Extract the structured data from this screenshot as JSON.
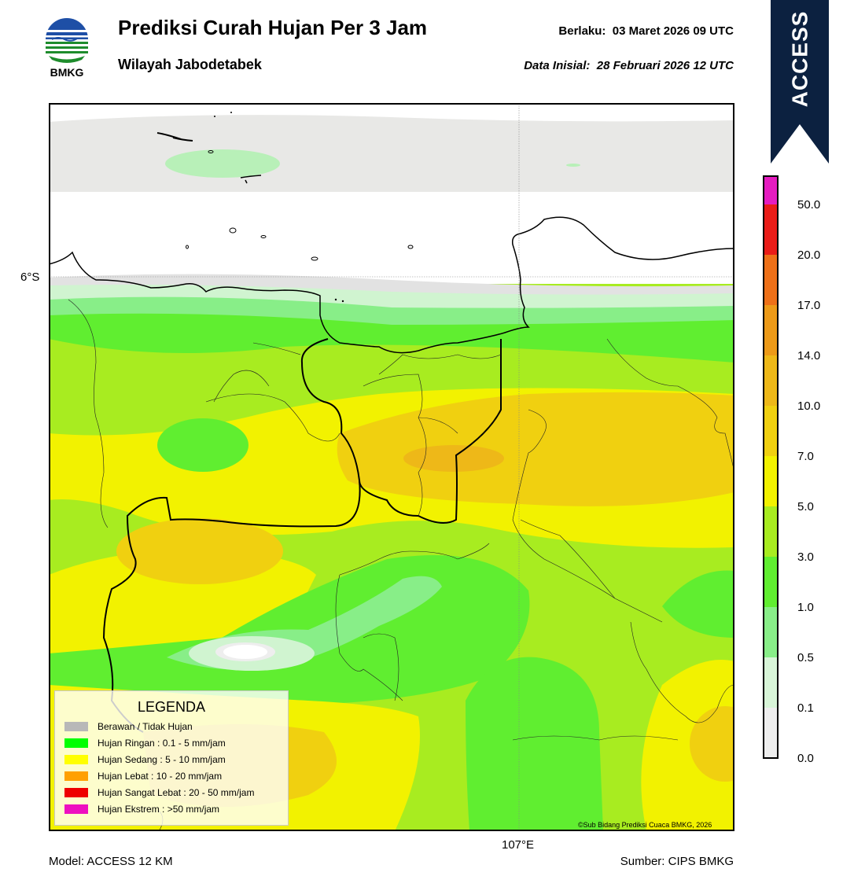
{
  "header": {
    "title": "Prediksi Curah Hujan Per 3 Jam",
    "subtitle": "Wilayah Jabodetabek",
    "valid": "Berlaku:  03 Maret 2026 09 UTC",
    "initial": "Data Inisial:  28 Februari 2026 12 UTC"
  },
  "logo": {
    "text": "BMKG",
    "blue": "#1e4fa6",
    "green": "#1e8c2c"
  },
  "banner": {
    "text": "ACCESS",
    "color": "#0c2140"
  },
  "map": {
    "lat_label": "6°S",
    "lon_label": "107°E",
    "copyright": "©Sub Bidang Prediksi Cuaca BMKG, 2026"
  },
  "colorbar": {
    "ticks": [
      "0.0",
      "0.1",
      "0.5",
      "1.0",
      "3.0",
      "5.0",
      "7.0",
      "10.0",
      "14.0",
      "17.0",
      "20.0",
      "50.0"
    ],
    "colors": [
      "#eeeeee",
      "#d8f5d8",
      "#88ee88",
      "#60ee30",
      "#a8ec20",
      "#f2f200",
      "#f0d010",
      "#eeb818",
      "#ed9a18",
      "#ee7018",
      "#ea1c18",
      "#e51cc0"
    ]
  },
  "legend": {
    "title": "LEGENDA",
    "items": [
      {
        "label": "Berawan / Tidak Hujan",
        "color": "#b8b8b8"
      },
      {
        "label": "Hujan Ringan : 0.1 - 5 mm/jam",
        "color": "#00ff00"
      },
      {
        "label": "Hujan Sedang : 5 - 10 mm/jam",
        "color": "#ffff00"
      },
      {
        "label": "Hujan Lebat : 10 - 20 mm/jam",
        "color": "#ffa000"
      },
      {
        "label": "Hujan Sangat Lebat : 20 - 50 mm/jam",
        "color": "#ee0000"
      },
      {
        "label": "Hujan Ekstrem : >50 mm/jam",
        "color": "#ee10c0"
      }
    ]
  },
  "footer": {
    "model": "Model: ACCESS 12 KM",
    "source": "Sumber: CIPS BMKG"
  }
}
